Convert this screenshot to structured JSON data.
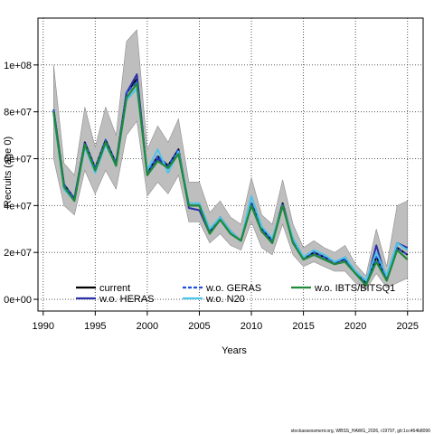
{
  "chart_data": {
    "type": "line",
    "xlabel": "Years",
    "ylabel": "Recruits (age 0)",
    "xlim": [
      1989.5,
      2026.5
    ],
    "ylim": [
      -5000000,
      120000000
    ],
    "x_ticks": [
      {
        "v": 1990,
        "label": "1990"
      },
      {
        "v": 1995,
        "label": "1995"
      },
      {
        "v": 2000,
        "label": "2000"
      },
      {
        "v": 2005,
        "label": "2005"
      },
      {
        "v": 2010,
        "label": "2010"
      },
      {
        "v": 2015,
        "label": "2015"
      },
      {
        "v": 2020,
        "label": "2020"
      },
      {
        "v": 2025,
        "label": "2025"
      }
    ],
    "y_ticks": [
      {
        "v": 0,
        "label": "0e+00"
      },
      {
        "v": 20000000,
        "label": "2e+07"
      },
      {
        "v": 40000000,
        "label": "4e+07"
      },
      {
        "v": 60000000,
        "label": "6e+07"
      },
      {
        "v": 80000000,
        "label": "8e+07"
      },
      {
        "v": 100000000,
        "label": "1e+08"
      }
    ],
    "grid": true,
    "legend_position": "bottom",
    "x": [
      1991,
      1992,
      1993,
      1994,
      1995,
      1996,
      1997,
      1998,
      1999,
      2000,
      2001,
      2002,
      2003,
      2004,
      2005,
      2006,
      2007,
      2008,
      2009,
      2010,
      2011,
      2012,
      2013,
      2014,
      2015,
      2016,
      2017,
      2018,
      2019,
      2020,
      2021,
      2022,
      2023,
      2024,
      2025
    ],
    "band": {
      "lower": [
        60000000,
        40000000,
        36000000,
        55000000,
        45000000,
        55000000,
        47000000,
        70000000,
        76000000,
        44000000,
        50000000,
        45000000,
        53000000,
        33000000,
        33000000,
        24000000,
        28000000,
        23000000,
        21000000,
        33000000,
        22000000,
        19000000,
        32000000,
        19000000,
        14000000,
        16000000,
        14000000,
        12000000,
        12000000,
        7000000,
        4000000,
        11000000,
        5000000,
        7000000,
        9000000
      ],
      "upper": [
        100000000,
        58000000,
        53000000,
        82000000,
        65000000,
        82000000,
        70000000,
        110000000,
        115000000,
        64000000,
        74000000,
        67000000,
        77000000,
        50000000,
        50000000,
        37000000,
        42000000,
        35000000,
        32000000,
        52000000,
        36000000,
        32000000,
        51000000,
        32000000,
        22000000,
        25000000,
        22000000,
        20000000,
        23000000,
        15000000,
        10000000,
        30000000,
        14000000,
        40000000,
        42000000
      ]
    },
    "series": [
      {
        "name": "current",
        "color": "#000000",
        "dash": "solid",
        "values": [
          81000000,
          49000000,
          43000000,
          67000000,
          56000000,
          68000000,
          58000000,
          88000000,
          94000000,
          54000000,
          61000000,
          57000000,
          64000000,
          40000000,
          40000000,
          29000000,
          35000000,
          29000000,
          25000000,
          41000000,
          30000000,
          25000000,
          41000000,
          25000000,
          17000000,
          20000000,
          18000000,
          16000000,
          17000000,
          11000000,
          7000000,
          18000000,
          9000000,
          22000000,
          19000000
        ]
      },
      {
        "name": "w.o. HERAS",
        "color": "#2b2fa8",
        "dash": "solid",
        "values": [
          80000000,
          48000000,
          43000000,
          66000000,
          55000000,
          67000000,
          57000000,
          88000000,
          96000000,
          53000000,
          60000000,
          56000000,
          63000000,
          39000000,
          38000000,
          28000000,
          34000000,
          28000000,
          25000000,
          40000000,
          29000000,
          24000000,
          40000000,
          24000000,
          17000000,
          19000000,
          17000000,
          15000000,
          18000000,
          11000000,
          6000000,
          23000000,
          8000000,
          24000000,
          22000000
        ]
      },
      {
        "name": "w.o. GERAS",
        "color": "#1f4fd8",
        "dash": "dashed",
        "values": [
          81000000,
          49000000,
          43000000,
          67000000,
          56000000,
          68000000,
          58000000,
          88000000,
          93000000,
          54000000,
          61000000,
          57000000,
          64000000,
          40000000,
          40000000,
          29000000,
          35000000,
          29000000,
          25000000,
          41000000,
          30000000,
          25000000,
          41000000,
          25000000,
          17000000,
          20000000,
          18000000,
          16000000,
          17000000,
          11000000,
          7000000,
          18000000,
          9000000,
          22000000,
          19000000
        ]
      },
      {
        "name": "w.o. N20",
        "color": "#4cc3e8",
        "dash": "solid",
        "values": [
          79000000,
          47000000,
          42000000,
          65000000,
          54000000,
          66000000,
          57000000,
          85000000,
          90000000,
          55000000,
          64000000,
          54000000,
          63000000,
          41000000,
          41000000,
          30000000,
          35000000,
          29000000,
          25000000,
          44000000,
          31000000,
          26000000,
          40000000,
          26000000,
          18000000,
          21000000,
          19000000,
          16000000,
          18000000,
          12000000,
          8000000,
          20000000,
          10000000,
          24000000,
          21000000
        ]
      },
      {
        "name": "w.o. IBTS/BITSQ1",
        "color": "#1f8a3a",
        "dash": "solid",
        "values": [
          80000000,
          48000000,
          42000000,
          66000000,
          55000000,
          67000000,
          57000000,
          86000000,
          92000000,
          53000000,
          59000000,
          56000000,
          62000000,
          40000000,
          40000000,
          28000000,
          34000000,
          28000000,
          25000000,
          40000000,
          29000000,
          24000000,
          40000000,
          24000000,
          17000000,
          19000000,
          17000000,
          15000000,
          16000000,
          11000000,
          6000000,
          16000000,
          8000000,
          21000000,
          17000000
        ]
      }
    ]
  },
  "footer": "stockassessment.org, WBSS_HAWG_2026, r19797, git:1cc464b8096"
}
